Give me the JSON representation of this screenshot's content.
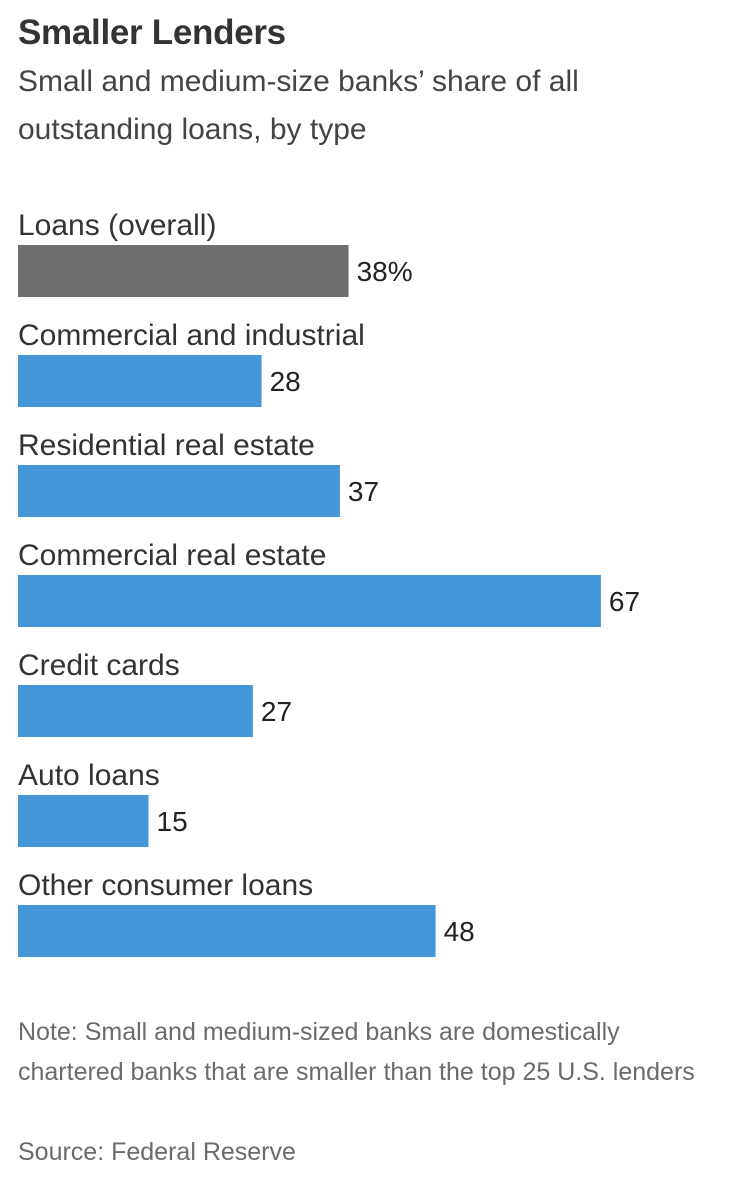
{
  "chart_data": {
    "type": "bar",
    "orientation": "horizontal",
    "title": "Smaller Lenders",
    "subtitle": "Small and medium-size banks’ share of all outstanding loans, by type",
    "categories": [
      "Loans (overall)",
      "Commercial and industrial",
      "Residential real estate",
      "Commercial real estate",
      "Credit cards",
      "Auto loans",
      "Other consumer loans"
    ],
    "values": [
      38,
      28,
      37,
      67,
      27,
      15,
      48
    ],
    "value_labels": [
      "38%",
      "28",
      "37",
      "67",
      "27",
      "15",
      "48"
    ],
    "unit": "%",
    "bar_colors": [
      "#6e6e6e",
      "#4397d8",
      "#4397d8",
      "#4397d8",
      "#4397d8",
      "#4397d8",
      "#4397d8"
    ],
    "xlim": [
      0,
      100
    ],
    "grid": false,
    "legend": "none"
  },
  "footer": {
    "note": "Note: Small and medium-sized banks are domestically chartered banks that are smaller than the top 25 U.S. lenders",
    "source": "Source: Federal Reserve"
  }
}
